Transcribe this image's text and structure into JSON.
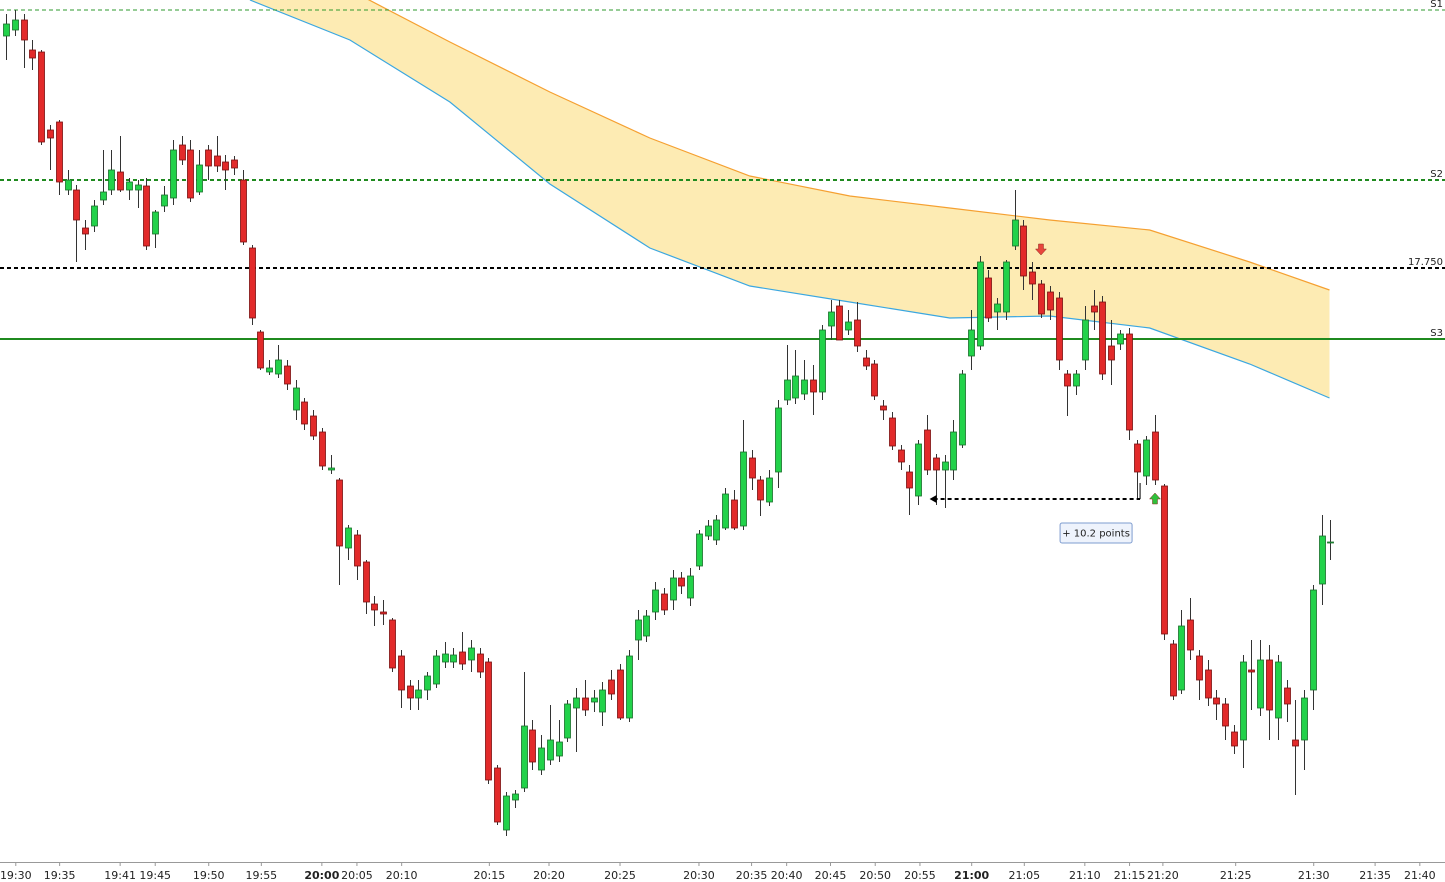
{
  "chart_data": {
    "type": "candlestick",
    "up_color": "#22d24a",
    "down_color": "#e22a2a",
    "up_edge": "#1a6e2a",
    "down_edge": "#7a1010",
    "wick_color": "#333333",
    "xlim": [
      -0.7,
      164.07
    ],
    "ylim": [
      17690.6,
      17776.8
    ],
    "xticks": [
      {
        "value": 1.1,
        "label": "19:30"
      },
      {
        "value": 6.1,
        "label": "19:35"
      },
      {
        "value": 13.0,
        "label": "19:41"
      },
      {
        "value": 17.0,
        "label": "19:45"
      },
      {
        "value": 23.1,
        "label": "19:50"
      },
      {
        "value": 29.1,
        "label": "19:55"
      },
      {
        "value": 36.0,
        "label": "20:00",
        "bold": true
      },
      {
        "value": 40.0,
        "label": "20:05"
      },
      {
        "value": 45.1,
        "label": "20:10"
      },
      {
        "value": 55.1,
        "label": "20:15"
      },
      {
        "value": 61.9,
        "label": "20:20"
      },
      {
        "value": 70.0,
        "label": "20:25"
      },
      {
        "value": 79.0,
        "label": "20:30"
      },
      {
        "value": 85.0,
        "label": "20:35"
      },
      {
        "value": 89.0,
        "label": "20:40"
      },
      {
        "value": 94.0,
        "label": "20:45"
      },
      {
        "value": 99.1,
        "label": "20:50"
      },
      {
        "value": 104.2,
        "label": "20:55"
      },
      {
        "value": 110.1,
        "label": "21:00",
        "bold": true
      },
      {
        "value": 116.1,
        "label": "21:05"
      },
      {
        "value": 123.0,
        "label": "21:10"
      },
      {
        "value": 128.1,
        "label": "21:15"
      },
      {
        "value": 131.9,
        "label": "21:20"
      },
      {
        "value": 140.2,
        "label": "21:25"
      },
      {
        "value": 149.1,
        "label": "21:30"
      },
      {
        "value": 156.1,
        "label": "21:35"
      },
      {
        "value": 161.2,
        "label": "21:40"
      }
    ],
    "ohlc": [
      [
        17773.2,
        17775.4,
        17770.8,
        17774.4
      ],
      [
        17773.8,
        17775.8,
        17773.2,
        17774.8
      ],
      [
        17774.8,
        17775.4,
        17770.0,
        17772.8
      ],
      [
        17771.8,
        17772.8,
        17769.8,
        17771.0
      ],
      [
        17771.6,
        17771.8,
        17762.3,
        17762.6
      ],
      [
        17763.8,
        17764.3,
        17759.8,
        17763.0
      ],
      [
        17764.6,
        17764.8,
        17757.3,
        17758.6
      ],
      [
        17757.8,
        17759.8,
        17757.3,
        17758.8
      ],
      [
        17757.8,
        17758.3,
        17750.6,
        17754.8
      ],
      [
        17754.0,
        17754.8,
        17751.8,
        17753.4
      ],
      [
        17754.2,
        17756.8,
        17753.6,
        17756.2
      ],
      [
        17756.8,
        17761.8,
        17756.3,
        17757.6
      ],
      [
        17757.8,
        17761.8,
        17757.3,
        17759.8
      ],
      [
        17759.6,
        17763.2,
        17757.6,
        17757.8
      ],
      [
        17757.8,
        17759.0,
        17756.8,
        17758.6
      ],
      [
        17757.8,
        17758.8,
        17756.0,
        17758.3
      ],
      [
        17758.2,
        17759.0,
        17751.8,
        17752.2
      ],
      [
        17753.4,
        17755.8,
        17752.0,
        17755.6
      ],
      [
        17756.2,
        17758.2,
        17755.6,
        17757.3
      ],
      [
        17757.0,
        17762.8,
        17756.3,
        17761.8
      ],
      [
        17762.3,
        17763.2,
        17760.3,
        17760.8
      ],
      [
        17761.8,
        17762.8,
        17756.6,
        17757.0
      ],
      [
        17757.6,
        17761.8,
        17757.3,
        17760.3
      ],
      [
        17761.8,
        17762.3,
        17758.8,
        17760.2
      ],
      [
        17761.2,
        17763.2,
        17759.6,
        17760.2
      ],
      [
        17760.6,
        17761.3,
        17757.8,
        17759.8
      ],
      [
        17760.8,
        17761.2,
        17759.3,
        17760.0
      ],
      [
        17758.8,
        17759.8,
        17752.3,
        17752.6
      ],
      [
        17752.0,
        17752.3,
        17744.3,
        17745.0
      ],
      [
        17743.6,
        17743.8,
        17739.8,
        17740.0
      ],
      [
        17739.6,
        17740.8,
        17739.3,
        17740.0
      ],
      [
        17739.4,
        17742.3,
        17739.0,
        17740.8
      ],
      [
        17740.2,
        17740.8,
        17737.8,
        17738.4
      ],
      [
        17735.8,
        17738.8,
        17734.8,
        17738.0
      ],
      [
        17736.6,
        17737.0,
        17733.8,
        17734.4
      ],
      [
        17735.2,
        17735.8,
        17732.8,
        17733.2
      ],
      [
        17733.6,
        17734.0,
        17729.8,
        17730.2
      ],
      [
        17729.8,
        17731.3,
        17729.4,
        17730.0
      ],
      [
        17728.8,
        17729.0,
        17718.3,
        17722.2
      ],
      [
        17722.0,
        17724.3,
        17720.8,
        17724.0
      ],
      [
        17723.3,
        17723.8,
        17718.8,
        17720.2
      ],
      [
        17720.6,
        17720.8,
        17715.4,
        17716.6
      ],
      [
        17716.4,
        17717.2,
        17714.2,
        17715.8
      ],
      [
        17715.6,
        17716.8,
        17714.3,
        17715.4
      ],
      [
        17714.8,
        17715.0,
        17709.6,
        17710.0
      ],
      [
        17711.2,
        17711.8,
        17706.0,
        17707.8
      ],
      [
        17708.2,
        17708.8,
        17705.8,
        17707.0
      ],
      [
        17707.0,
        17708.8,
        17705.8,
        17707.8
      ],
      [
        17707.8,
        17709.6,
        17706.8,
        17709.2
      ],
      [
        17708.4,
        17711.8,
        17708.0,
        17711.2
      ],
      [
        17710.6,
        17712.6,
        17710.0,
        17711.4
      ],
      [
        17710.6,
        17712.0,
        17710.0,
        17711.3
      ],
      [
        17711.6,
        17713.6,
        17709.8,
        17710.4
      ],
      [
        17710.8,
        17712.8,
        17709.6,
        17712.0
      ],
      [
        17711.4,
        17712.0,
        17709.0,
        17709.6
      ],
      [
        17710.6,
        17711.0,
        17698.4,
        17698.8
      ],
      [
        17700.0,
        17700.3,
        17694.3,
        17694.6
      ],
      [
        17693.8,
        17697.6,
        17693.2,
        17697.2
      ],
      [
        17696.8,
        17697.8,
        17696.0,
        17697.4
      ],
      [
        17698.0,
        17709.6,
        17697.6,
        17704.2
      ],
      [
        17703.8,
        17704.8,
        17699.8,
        17700.6
      ],
      [
        17699.8,
        17703.3,
        17699.3,
        17702.0
      ],
      [
        17700.8,
        17706.3,
        17700.3,
        17702.8
      ],
      [
        17701.2,
        17704.8,
        17700.6,
        17702.6
      ],
      [
        17703.0,
        17706.8,
        17702.6,
        17706.4
      ],
      [
        17706.0,
        17708.0,
        17701.6,
        17707.0
      ],
      [
        17707.0,
        17708.8,
        17705.2,
        17705.8
      ],
      [
        17706.6,
        17707.8,
        17705.6,
        17707.0
      ],
      [
        17705.6,
        17708.6,
        17704.2,
        17707.8
      ],
      [
        17708.8,
        17709.8,
        17706.8,
        17707.4
      ],
      [
        17709.8,
        17710.4,
        17704.8,
        17705.0
      ],
      [
        17705.0,
        17711.8,
        17704.6,
        17711.2
      ],
      [
        17712.8,
        17715.8,
        17710.8,
        17714.8
      ],
      [
        17713.2,
        17715.8,
        17712.6,
        17715.2
      ],
      [
        17715.6,
        17718.6,
        17714.8,
        17717.8
      ],
      [
        17717.4,
        17718.0,
        17715.3,
        17715.8
      ],
      [
        17716.8,
        17719.8,
        17715.8,
        17719.0
      ],
      [
        17719.0,
        17719.6,
        17717.4,
        17718.2
      ],
      [
        17717.0,
        17720.0,
        17716.2,
        17719.2
      ],
      [
        17720.2,
        17723.8,
        17719.8,
        17723.4
      ],
      [
        17723.2,
        17724.8,
        17722.8,
        17724.2
      ],
      [
        17722.8,
        17725.3,
        17722.3,
        17724.8
      ],
      [
        17724.0,
        17728.0,
        17723.8,
        17727.4
      ],
      [
        17726.8,
        17727.8,
        17723.8,
        17724.0
      ],
      [
        17724.2,
        17734.8,
        17723.8,
        17731.6
      ],
      [
        17731.0,
        17731.8,
        17727.8,
        17729.0
      ],
      [
        17728.8,
        17729.2,
        17725.2,
        17726.8
      ],
      [
        17726.6,
        17729.8,
        17726.2,
        17729.0
      ],
      [
        17729.6,
        17736.8,
        17728.0,
        17736.0
      ],
      [
        17736.8,
        17742.3,
        17736.3,
        17738.8
      ],
      [
        17737.0,
        17741.8,
        17736.4,
        17739.2
      ],
      [
        17737.4,
        17740.8,
        17736.8,
        17738.8
      ],
      [
        17738.8,
        17740.3,
        17735.3,
        17737.6
      ],
      [
        17737.6,
        17744.3,
        17736.8,
        17743.8
      ],
      [
        17744.2,
        17746.8,
        17742.8,
        17745.6
      ],
      [
        17746.2,
        17746.8,
        17742.8,
        17742.8
      ],
      [
        17743.8,
        17745.8,
        17743.3,
        17744.6
      ],
      [
        17744.8,
        17746.6,
        17741.6,
        17742.2
      ],
      [
        17741.0,
        17741.8,
        17739.8,
        17740.2
      ],
      [
        17740.4,
        17740.8,
        17736.8,
        17737.2
      ],
      [
        17736.2,
        17736.8,
        17734.8,
        17735.8
      ],
      [
        17735.0,
        17735.6,
        17731.8,
        17732.2
      ],
      [
        17731.8,
        17732.3,
        17729.8,
        17730.6
      ],
      [
        17729.6,
        17730.3,
        17725.3,
        17728.0
      ],
      [
        17727.2,
        17732.8,
        17726.3,
        17732.4
      ],
      [
        17733.8,
        17735.3,
        17729.3,
        17729.8
      ],
      [
        17731.0,
        17731.4,
        17726.3,
        17729.8
      ],
      [
        17729.8,
        17731.3,
        17726.0,
        17730.6
      ],
      [
        17729.8,
        17734.8,
        17728.8,
        17733.6
      ],
      [
        17732.3,
        17739.8,
        17732.0,
        17739.4
      ],
      [
        17741.2,
        17745.8,
        17739.8,
        17743.8
      ],
      [
        17742.2,
        17751.2,
        17741.8,
        17750.6
      ],
      [
        17749.0,
        17749.8,
        17744.6,
        17745.0
      ],
      [
        17745.6,
        17747.0,
        17743.8,
        17746.4
      ],
      [
        17745.6,
        17750.8,
        17744.8,
        17750.6
      ],
      [
        17752.2,
        17757.8,
        17751.8,
        17754.8
      ],
      [
        17754.2,
        17754.8,
        17747.8,
        17749.2
      ],
      [
        17749.6,
        17750.6,
        17746.8,
        17748.4
      ],
      [
        17748.4,
        17748.8,
        17745.0,
        17745.4
      ],
      [
        17747.6,
        17748.2,
        17744.8,
        17745.8
      ],
      [
        17747.0,
        17747.6,
        17739.8,
        17740.8
      ],
      [
        17739.4,
        17739.8,
        17735.2,
        17738.2
      ],
      [
        17738.2,
        17739.8,
        17737.3,
        17739.4
      ],
      [
        17740.8,
        17746.2,
        17739.8,
        17744.8
      ],
      [
        17746.2,
        17747.8,
        17743.8,
        17745.6
      ],
      [
        17746.6,
        17747.2,
        17738.8,
        17739.4
      ],
      [
        17742.2,
        17744.8,
        17738.3,
        17740.8
      ],
      [
        17742.4,
        17743.8,
        17741.8,
        17743.4
      ],
      [
        17743.4,
        17744.0,
        17732.8,
        17733.8
      ],
      [
        17732.4,
        17732.8,
        17726.8,
        17729.6
      ],
      [
        17729.2,
        17733.2,
        17728.3,
        17732.8
      ],
      [
        17733.6,
        17735.3,
        17728.3,
        17728.8
      ],
      [
        17728.2,
        17728.4,
        17712.8,
        17713.4
      ],
      [
        17712.4,
        17712.8,
        17706.8,
        17707.2
      ],
      [
        17707.8,
        17715.8,
        17707.4,
        17714.2
      ],
      [
        17714.8,
        17717.0,
        17710.8,
        17711.8
      ],
      [
        17711.2,
        17711.8,
        17706.8,
        17708.8
      ],
      [
        17709.8,
        17710.8,
        17706.2,
        17707.0
      ],
      [
        17707.0,
        17707.8,
        17704.8,
        17706.4
      ],
      [
        17706.4,
        17707.0,
        17702.8,
        17704.2
      ],
      [
        17703.6,
        17704.3,
        17701.4,
        17702.2
      ],
      [
        17702.8,
        17711.3,
        17700.0,
        17710.6
      ],
      [
        17709.8,
        17712.8,
        17705.8,
        17709.6
      ],
      [
        17706.0,
        17712.8,
        17705.2,
        17710.8
      ],
      [
        17710.8,
        17712.3,
        17702.8,
        17705.8
      ],
      [
        17705.0,
        17711.3,
        17702.8,
        17710.6
      ],
      [
        17708.0,
        17708.8,
        17704.6,
        17706.4
      ],
      [
        17702.8,
        17706.8,
        17697.3,
        17702.2
      ],
      [
        17702.8,
        17707.8,
        17699.8,
        17707.0
      ],
      [
        17707.8,
        17718.3,
        17705.8,
        17717.8
      ],
      [
        17718.4,
        17725.3,
        17716.3,
        17723.2
      ],
      [
        17722.6,
        17724.8,
        17720.8,
        17722.6
      ]
    ],
    "band": {
      "fill": "#fde7a6",
      "x": [
        27.8,
        39.2,
        50.6,
        62.0,
        73.4,
        84.8,
        96.2,
        107.6,
        119.0,
        130.4,
        141.8,
        150.9
      ],
      "upper": {
        "color": "#f5a031",
        "values": [
          17783.8,
          17777.8,
          17772.6,
          17767.6,
          17763.0,
          17759.2,
          17757.2,
          17756.0,
          17754.8,
          17753.8,
          17750.6,
          17747.8
        ]
      },
      "lower": {
        "color": "#3ba7e0",
        "values": [
          17776.8,
          17772.8,
          17766.6,
          17758.4,
          17752.0,
          17748.2,
          17746.6,
          17745.0,
          17745.2,
          17744.0,
          17740.4,
          17737.0
        ]
      }
    },
    "levels": [
      {
        "value": 17775.8,
        "label": "S1",
        "color": "#2e9a2e",
        "style": "dashed",
        "width": 1
      },
      {
        "value": 17758.8,
        "label": "S2",
        "color": "#1f8a1f",
        "style": "dashed",
        "width": 2
      },
      {
        "value": 17750.0,
        "label": "17.750",
        "color": "#000000",
        "style": "dashed",
        "width": 2
      },
      {
        "value": 17742.9,
        "label": "S3",
        "color": "#1f8a1f",
        "style": "solid",
        "width": 2
      }
    ],
    "signals": [
      {
        "kind": "sell",
        "index": 118,
        "color": "#e8453c"
      },
      {
        "kind": "buy",
        "index": 131,
        "color": "#2fc03a"
      }
    ],
    "measure": {
      "text": "+ 10.2 points",
      "price": 17726.9,
      "x": [
        105.3,
        129.3
      ]
    }
  }
}
